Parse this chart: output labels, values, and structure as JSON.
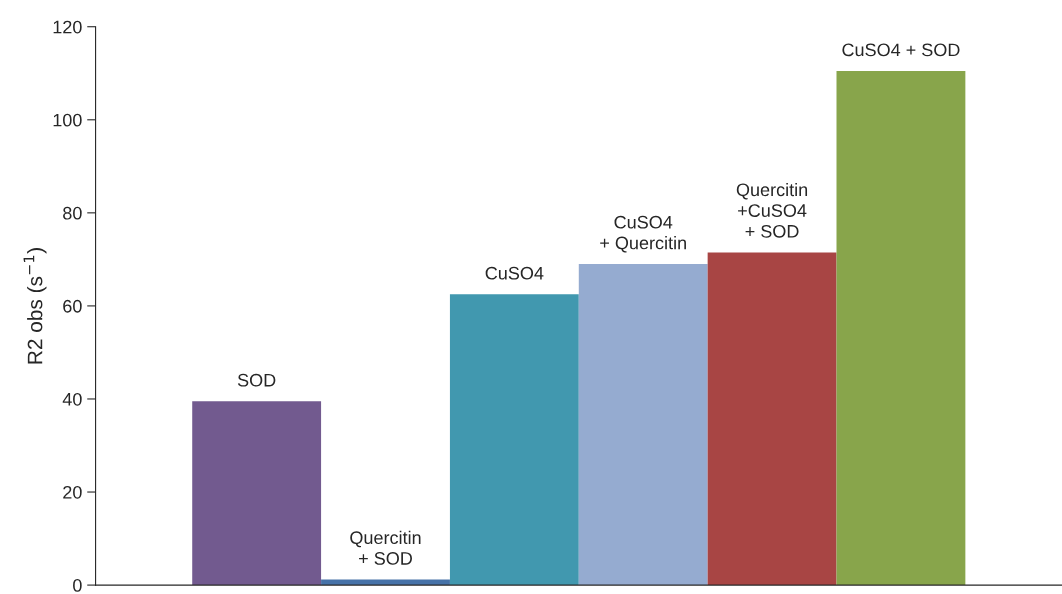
{
  "chart_data": {
    "type": "bar",
    "ylabel": "R2 obs (s$^{−1}$)",
    "categories": [
      "SOD",
      "Quercitin\n+ SOD",
      "CuSO4",
      "CuSO4\n+ Quercitin",
      "Quercitin\n+CuSO4\n+ SOD",
      "CuSO4 + SOD"
    ],
    "values": [
      39.5,
      1.2,
      62.5,
      69,
      71.5,
      110.5
    ],
    "colors": [
      "#725a8f",
      "#4672a8",
      "#4198af",
      "#95abd0",
      "#a84544",
      "#88a54b"
    ],
    "ylim": [
      0,
      120
    ],
    "yticks": [
      0,
      20,
      40,
      60,
      80,
      100,
      120
    ],
    "grid": false,
    "legend": false
  }
}
